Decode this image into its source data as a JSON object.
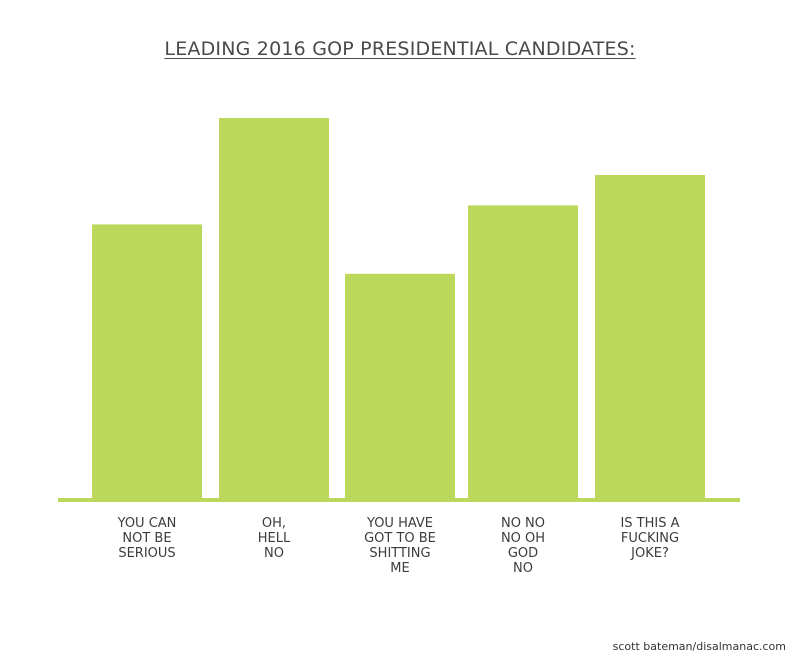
{
  "chart_data": {
    "type": "bar",
    "title": "LEADING 2016 GOP PRESIDENTIAL CANDIDATES:",
    "categories": [
      "YOU CAN\nNOT BE\nSERIOUS",
      "OH,\nHELL\nNO",
      "YOU HAVE\nGOT TO BE\nSHITTING\nME",
      "NO NO\nNO OH\nGOD\nNO",
      "IS THIS A\nFUCKING\nJOKE?"
    ],
    "values": [
      72,
      100,
      59,
      77,
      85
    ],
    "xlabel": "",
    "ylabel": "",
    "ylim": [
      0,
      100
    ],
    "grid": false,
    "legend": "none",
    "bar_color": "#bcd85a",
    "axis_color": "#bcd85a"
  },
  "credit": "scott bateman/disalmanac.com"
}
